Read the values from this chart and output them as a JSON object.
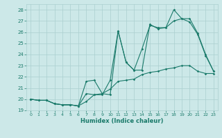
{
  "x": [
    0,
    1,
    2,
    3,
    4,
    5,
    6,
    7,
    8,
    9,
    10,
    11,
    12,
    13,
    14,
    15,
    16,
    17,
    18,
    19,
    20,
    21,
    22,
    23
  ],
  "line1": [
    20.0,
    19.9,
    19.9,
    19.6,
    19.5,
    19.5,
    19.4,
    20.5,
    20.4,
    20.4,
    21.7,
    26.1,
    23.3,
    22.6,
    24.5,
    26.6,
    26.4,
    26.4,
    28.0,
    27.2,
    27.2,
    25.9,
    24.0,
    22.5
  ],
  "line2": [
    20.0,
    19.9,
    19.9,
    19.6,
    19.5,
    19.5,
    19.4,
    21.6,
    21.7,
    20.5,
    20.4,
    26.1,
    23.3,
    22.6,
    22.6,
    26.7,
    26.3,
    26.4,
    27.0,
    27.2,
    26.9,
    25.8,
    23.9,
    22.5
  ],
  "line3": [
    20.0,
    19.9,
    19.9,
    19.6,
    19.5,
    19.5,
    19.4,
    19.8,
    20.4,
    20.5,
    20.9,
    21.6,
    21.7,
    21.8,
    22.2,
    22.4,
    22.5,
    22.7,
    22.8,
    23.0,
    23.0,
    22.5,
    22.3,
    22.3
  ],
  "line_color": "#1a7a6a",
  "bg_color": "#cce8e8",
  "grid_color": "#aacfcf",
  "xlabel": "Humidex (Indice chaleur)",
  "ylim": [
    19.0,
    28.5
  ],
  "xlim": [
    -0.5,
    23.5
  ],
  "yticks": [
    19,
    20,
    21,
    22,
    23,
    24,
    25,
    26,
    27,
    28
  ],
  "xticks": [
    0,
    1,
    2,
    3,
    4,
    5,
    6,
    7,
    8,
    9,
    10,
    11,
    12,
    13,
    14,
    15,
    16,
    17,
    18,
    19,
    20,
    21,
    22,
    23
  ]
}
